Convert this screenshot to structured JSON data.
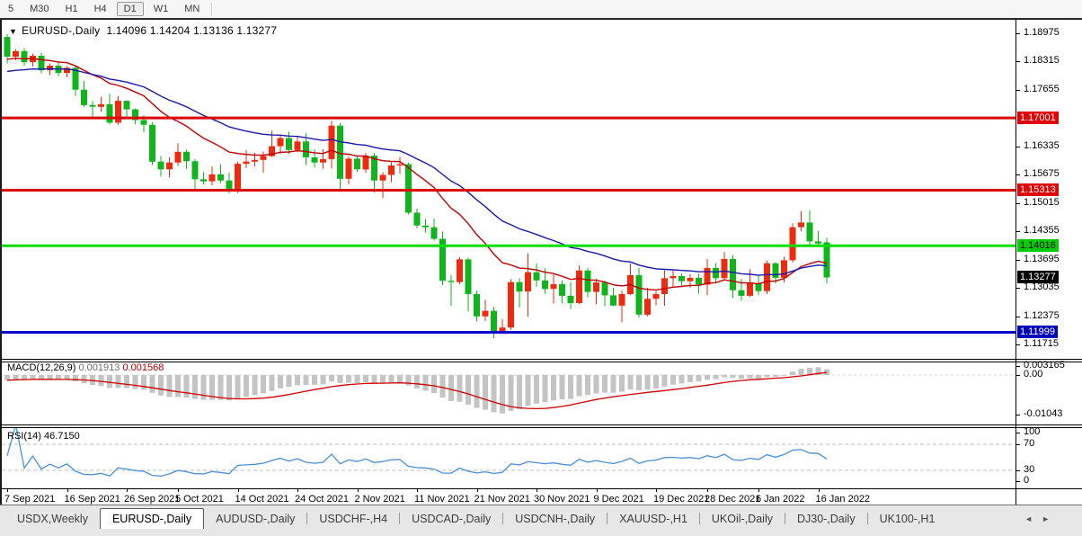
{
  "icons": {
    "dropdown": "▼",
    "tab_scroll_left": "◄",
    "tab_scroll_right": "►"
  },
  "toolbar": {
    "timeframes": [
      {
        "label": "5",
        "active": false
      },
      {
        "label": "M30",
        "active": false
      },
      {
        "label": "H1",
        "active": false
      },
      {
        "label": "H4",
        "active": false
      },
      {
        "label": "D1",
        "active": true
      },
      {
        "label": "W1",
        "active": false
      },
      {
        "label": "MN",
        "active": false
      }
    ]
  },
  "chart": {
    "title": {
      "symbol": "EURUSD-,Daily",
      "ohlc": "1.14096 1.14204 1.13136 1.13277"
    },
    "price_axis": {
      "ticks": [
        "1.18975",
        "1.18315",
        "1.17655",
        "1.16335",
        "1.15675",
        "1.15015",
        "1.14355",
        "1.13695",
        "1.13035",
        "1.12375",
        "1.11715"
      ],
      "badges": [
        {
          "value": "1.17001",
          "bg": "#e00000",
          "fg": "#ffffff"
        },
        {
          "value": "1.15313",
          "bg": "#e00000",
          "fg": "#ffffff"
        },
        {
          "value": "1.14016",
          "bg": "#00cc00",
          "fg": "#000000"
        },
        {
          "value": "1.13277",
          "bg": "#000000",
          "fg": "#ffffff"
        },
        {
          "value": "1.11999",
          "bg": "#0000bb",
          "fg": "#ffffff"
        }
      ]
    },
    "date_axis": [
      {
        "label": "7 Sep 2021",
        "candle": 0
      },
      {
        "label": "16 Sep 2021",
        "candle": 7
      },
      {
        "label": "26 Sep 2021",
        "candle": 14
      },
      {
        "label": "5 Oct 2021",
        "candle": 20
      },
      {
        "label": "14 Oct 2021",
        "candle": 27
      },
      {
        "label": "24 Oct 2021",
        "candle": 34
      },
      {
        "label": "2 Nov 2021",
        "candle": 41
      },
      {
        "label": "11 Nov 2021",
        "candle": 48
      },
      {
        "label": "21 Nov 2021",
        "candle": 55
      },
      {
        "label": "30 Nov 2021",
        "candle": 62
      },
      {
        "label": "9 Dec 2021",
        "candle": 69
      },
      {
        "label": "19 Dec 2021",
        "candle": 76
      },
      {
        "label": "28 Dec 2021",
        "candle": 82
      },
      {
        "label": "6 Jan 2022",
        "candle": 88
      },
      {
        "label": "16 Jan 2022",
        "candle": 95
      }
    ]
  },
  "chart_data": {
    "type": "candlestick",
    "symbol": "EURUSD-",
    "timeframe": "Daily",
    "last_price": 1.13277,
    "price_range": [
      1.11715,
      1.18975
    ],
    "levels": [
      {
        "name": "resistance-1",
        "value": 1.17001,
        "color": "#dd0404",
        "width": 3
      },
      {
        "name": "resistance-2",
        "value": 1.15313,
        "color": "#dd0404",
        "width": 3
      },
      {
        "name": "pivot-green",
        "value": 1.14016,
        "color": "#00dd00",
        "width": 3
      },
      {
        "name": "support-blue",
        "value": 1.11999,
        "color": "#0202cc",
        "width": 3
      }
    ],
    "colors": {
      "up": "#ee2a10",
      "down": "#10b41c",
      "ma_fast": "#c00000",
      "ma_slow": "#1a1aae",
      "macd_bar": "#c4c4c4",
      "macd_signal": "#d00000",
      "rsi_line": "#4a90d9"
    },
    "ohlc": [
      [
        1.1889,
        1.1896,
        1.1827,
        1.1843
      ],
      [
        1.1843,
        1.186,
        1.1834,
        1.1856
      ],
      [
        1.1856,
        1.1863,
        1.1822,
        1.183
      ],
      [
        1.183,
        1.185,
        1.182,
        1.1845
      ],
      [
        1.1845,
        1.1852,
        1.1804,
        1.1811
      ],
      [
        1.1811,
        1.1827,
        1.18,
        1.1822
      ],
      [
        1.1822,
        1.1832,
        1.1797,
        1.1805
      ],
      [
        1.1805,
        1.1821,
        1.1795,
        1.1817
      ],
      [
        1.1817,
        1.1822,
        1.1751,
        1.1766
      ],
      [
        1.1766,
        1.1786,
        1.1726,
        1.173
      ],
      [
        1.173,
        1.1739,
        1.17,
        1.1726
      ],
      [
        1.1726,
        1.1749,
        1.1714,
        1.1732
      ],
      [
        1.1732,
        1.1756,
        1.1685,
        1.1689
      ],
      [
        1.1689,
        1.1751,
        1.1684,
        1.174
      ],
      [
        1.174,
        1.1741,
        1.1702,
        1.172
      ],
      [
        1.172,
        1.1722,
        1.1685,
        1.1695
      ],
      [
        1.1695,
        1.1706,
        1.1667,
        1.1684
      ],
      [
        1.1684,
        1.169,
        1.159,
        1.1598
      ],
      [
        1.1598,
        1.1611,
        1.1563,
        1.158
      ],
      [
        1.158,
        1.1608,
        1.1561,
        1.1596
      ],
      [
        1.1596,
        1.1641,
        1.1588,
        1.1621
      ],
      [
        1.1621,
        1.1626,
        1.1581,
        1.1599
      ],
      [
        1.1599,
        1.1604,
        1.1529,
        1.1557
      ],
      [
        1.1557,
        1.1574,
        1.1545,
        1.1552
      ],
      [
        1.1552,
        1.1587,
        1.1543,
        1.1568
      ],
      [
        1.1568,
        1.1592,
        1.1548,
        1.1554
      ],
      [
        1.1554,
        1.1572,
        1.1524,
        1.153
      ],
      [
        1.153,
        1.1598,
        1.1525,
        1.1593
      ],
      [
        1.1593,
        1.1625,
        1.1583,
        1.1598
      ],
      [
        1.1598,
        1.1619,
        1.1587,
        1.1602
      ],
      [
        1.1602,
        1.1622,
        1.1572,
        1.1611
      ],
      [
        1.1611,
        1.167,
        1.1609,
        1.1634
      ],
      [
        1.1634,
        1.1659,
        1.1616,
        1.1653
      ],
      [
        1.1653,
        1.1668,
        1.1616,
        1.1625
      ],
      [
        1.1625,
        1.1657,
        1.162,
        1.1645
      ],
      [
        1.1645,
        1.1664,
        1.159,
        1.1608
      ],
      [
        1.1608,
        1.1627,
        1.1584,
        1.1596
      ],
      [
        1.1596,
        1.1627,
        1.1581,
        1.1604
      ],
      [
        1.1604,
        1.1693,
        1.1582,
        1.1682
      ],
      [
        1.1682,
        1.1688,
        1.1534,
        1.1558
      ],
      [
        1.1558,
        1.161,
        1.1545,
        1.1605
      ],
      [
        1.1605,
        1.1611,
        1.1574,
        1.158
      ],
      [
        1.158,
        1.1618,
        1.1572,
        1.1612
      ],
      [
        1.1612,
        1.1618,
        1.1526,
        1.1554
      ],
      [
        1.1554,
        1.1574,
        1.1513,
        1.1567
      ],
      [
        1.1567,
        1.1597,
        1.155,
        1.1589
      ],
      [
        1.1589,
        1.1609,
        1.157,
        1.1592
      ],
      [
        1.1592,
        1.1596,
        1.1475,
        1.1479
      ],
      [
        1.1479,
        1.1489,
        1.1442,
        1.1449
      ],
      [
        1.1449,
        1.1464,
        1.1432,
        1.1445
      ],
      [
        1.1445,
        1.1465,
        1.1414,
        1.1418
      ],
      [
        1.1418,
        1.1435,
        1.131,
        1.132
      ],
      [
        1.132,
        1.1333,
        1.1262,
        1.1317
      ],
      [
        1.1317,
        1.1375,
        1.1312,
        1.137
      ],
      [
        1.137,
        1.1374,
        1.1249,
        1.1289
      ],
      [
        1.1289,
        1.1297,
        1.1225,
        1.1237
      ],
      [
        1.1237,
        1.1276,
        1.1226,
        1.125
      ],
      [
        1.125,
        1.1259,
        1.1186,
        1.1199
      ],
      [
        1.1199,
        1.1231,
        1.1196,
        1.1211
      ],
      [
        1.1211,
        1.1324,
        1.1206,
        1.1317
      ],
      [
        1.1317,
        1.1326,
        1.1258,
        1.1295
      ],
      [
        1.1295,
        1.1384,
        1.1236,
        1.134
      ],
      [
        1.134,
        1.1361,
        1.1306,
        1.1321
      ],
      [
        1.1321,
        1.1349,
        1.129,
        1.1301
      ],
      [
        1.1301,
        1.1335,
        1.1267,
        1.1312
      ],
      [
        1.1312,
        1.1321,
        1.1268,
        1.1285
      ],
      [
        1.1285,
        1.1317,
        1.1254,
        1.1268
      ],
      [
        1.1268,
        1.1356,
        1.1265,
        1.1344
      ],
      [
        1.1344,
        1.135,
        1.1281,
        1.1294
      ],
      [
        1.1294,
        1.1325,
        1.1265,
        1.1316
      ],
      [
        1.1316,
        1.132,
        1.1261,
        1.1286
      ],
      [
        1.1286,
        1.1304,
        1.1261,
        1.1262
      ],
      [
        1.1262,
        1.1297,
        1.1223,
        1.1289
      ],
      [
        1.1289,
        1.1361,
        1.1286,
        1.1333
      ],
      [
        1.1333,
        1.135,
        1.1234,
        1.1241
      ],
      [
        1.1241,
        1.1304,
        1.1237,
        1.1278
      ],
      [
        1.1278,
        1.1296,
        1.1263,
        1.1289
      ],
      [
        1.1289,
        1.1344,
        1.1262,
        1.1326
      ],
      [
        1.1326,
        1.1344,
        1.1304,
        1.1331
      ],
      [
        1.1331,
        1.1337,
        1.1309,
        1.1319
      ],
      [
        1.1319,
        1.1335,
        1.1303,
        1.1327
      ],
      [
        1.1327,
        1.1336,
        1.1291,
        1.1311
      ],
      [
        1.1311,
        1.1371,
        1.1286,
        1.135
      ],
      [
        1.135,
        1.1361,
        1.1317,
        1.1326
      ],
      [
        1.1326,
        1.1387,
        1.1321,
        1.1371
      ],
      [
        1.1371,
        1.138,
        1.128,
        1.1298
      ],
      [
        1.1298,
        1.1324,
        1.1273,
        1.1285
      ],
      [
        1.1285,
        1.1347,
        1.1282,
        1.1314
      ],
      [
        1.1314,
        1.1333,
        1.1286,
        1.1296
      ],
      [
        1.1296,
        1.1367,
        1.1289,
        1.1361
      ],
      [
        1.1361,
        1.1363,
        1.1314,
        1.1327
      ],
      [
        1.1327,
        1.1376,
        1.1316,
        1.1368
      ],
      [
        1.1368,
        1.1454,
        1.1363,
        1.1445
      ],
      [
        1.1445,
        1.1483,
        1.1435,
        1.1456
      ],
      [
        1.1456,
        1.1484,
        1.1399,
        1.1412
      ],
      [
        1.1412,
        1.1436,
        1.1402,
        1.1407
      ],
      [
        1.14096,
        1.14204,
        1.13136,
        1.13277
      ]
    ],
    "overlays": [
      {
        "name": "ma-fast",
        "period": 16,
        "derived": true
      },
      {
        "name": "ma-slow",
        "period": 32,
        "derived": true
      }
    ],
    "indicators_derived_from_ohlc": true
  },
  "macd": {
    "label": "MACD(12,26,9)",
    "value_main": "0.001913",
    "value_signal": "0.001568",
    "params": [
      12,
      26,
      9
    ],
    "axis": [
      {
        "text": "0.003165",
        "value": 0.003165
      },
      {
        "text": "0.00",
        "value": 0.0
      },
      {
        "text": "-0.01043",
        "value": -0.01043
      }
    ]
  },
  "rsi": {
    "label": "RSI(14)",
    "value": "46.7150",
    "period": 14,
    "axis": [
      {
        "text": "100",
        "value": 100
      },
      {
        "text": "70",
        "value": 70
      },
      {
        "text": "30",
        "value": 30
      },
      {
        "text": "0",
        "value": 0
      }
    ],
    "levels": [
      70,
      30
    ]
  },
  "tabs": {
    "active_index": 1,
    "items": [
      {
        "label": "USDX,Weekly"
      },
      {
        "label": "EURUSD-,Daily"
      },
      {
        "label": "AUDUSD-,Daily"
      },
      {
        "label": "USDCHF-,H4"
      },
      {
        "label": "USDCAD-,Daily"
      },
      {
        "label": "USDCNH-,Daily"
      },
      {
        "label": "XAUUSD-,H1"
      },
      {
        "label": "UKOil-,Daily"
      },
      {
        "label": "DJ30-,Daily"
      },
      {
        "label": "UK100-,H1"
      }
    ]
  }
}
